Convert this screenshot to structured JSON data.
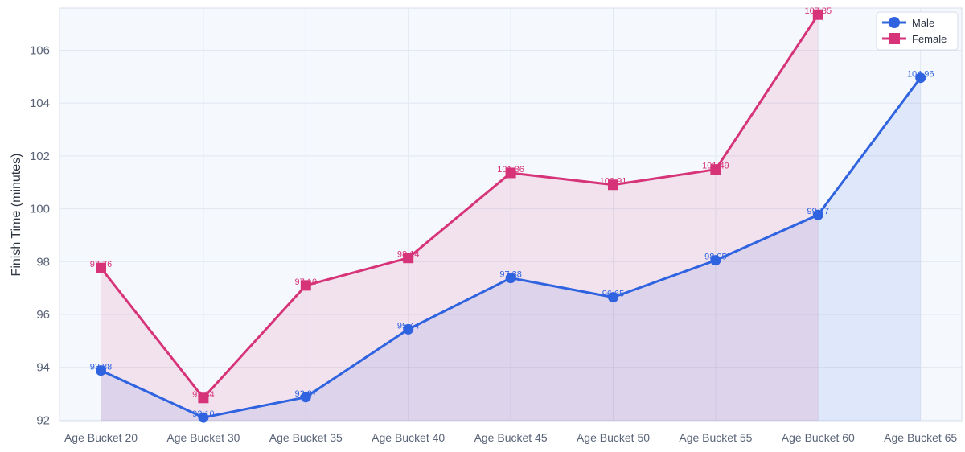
{
  "chart_data": {
    "type": "line",
    "title": "",
    "xlabel": "",
    "ylabel": "Finish Time (minutes)",
    "ylim": [
      91.95,
      107.6
    ],
    "yticks": [
      92,
      94,
      96,
      98,
      100,
      102,
      104,
      106
    ],
    "grid": true,
    "legend_position": "top-right",
    "categories": [
      "Age Bucket 20",
      "Age Bucket 30",
      "Age Bucket 35",
      "Age Bucket 40",
      "Age Bucket 45",
      "Age Bucket 50",
      "Age Bucket 55",
      "Age Bucket 60",
      "Age Bucket 65"
    ],
    "series": [
      {
        "name": "Male",
        "color": "#2f63e0",
        "marker": "circle",
        "values": [
          93.88,
          92.1,
          92.87,
          95.44,
          97.38,
          96.65,
          98.05,
          99.77,
          104.96
        ],
        "labels": [
          "93.88",
          "92.10",
          "92.87",
          "95.44",
          "97.38",
          "96.65",
          "98.05",
          "99.77",
          "104.96"
        ]
      },
      {
        "name": "Female",
        "color": "#d63378",
        "marker": "square",
        "values": [
          97.76,
          92.84,
          97.1,
          98.14,
          101.36,
          100.91,
          101.49,
          107.35,
          null
        ],
        "labels": [
          "97.76",
          "92.84",
          "97.10",
          "98.14",
          "101.36",
          "100.91",
          "101.49",
          "107.35",
          null
        ]
      }
    ]
  }
}
